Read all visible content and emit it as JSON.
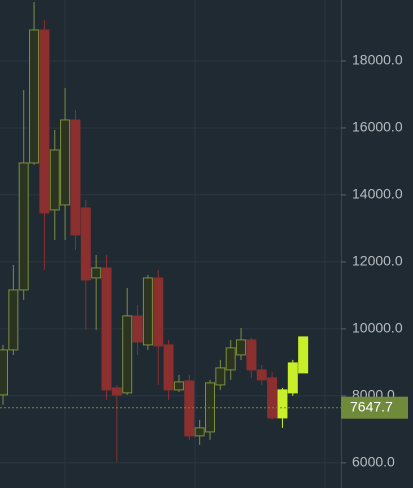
{
  "chart_data": {
    "type": "candlestick",
    "ylim": [
      5250,
      19820
    ],
    "yticks": [
      {
        "value": 6000,
        "label": "6000.0"
      },
      {
        "value": 8000,
        "label": "8000.0"
      },
      {
        "value": 10000,
        "label": "10000.0"
      },
      {
        "value": 12000,
        "label": "12000.0"
      },
      {
        "value": 14000,
        "label": "14000.0"
      },
      {
        "value": 16000,
        "label": "16000.0"
      },
      {
        "value": 18000,
        "label": "18000.0"
      }
    ],
    "grid": true,
    "up_color": "#7d8f3c",
    "down_color": "#8b2f2f",
    "candles": {
      "open": [
        8030,
        9373,
        11164,
        14955,
        18925,
        13552,
        13701,
        16239,
        13612,
        11522,
        11821,
        8239,
        8090,
        10388,
        9522,
        11522,
        9522,
        8179,
        8448,
        6806,
        6925,
        8328,
        8776,
        9224,
        9672,
        8776,
        8537
      ],
      "high": [
        9522,
        11910,
        17134,
        19761,
        19224,
        15940,
        17194,
        16537,
        13851,
        12209,
        12209,
        8328,
        11224,
        10716,
        11612,
        11761,
        9672,
        8627,
        8627,
        7284,
        8478,
        9075,
        9672,
        10030,
        9731,
        8925,
        8716
      ],
      "low": [
        7731,
        9224,
        10866,
        14896,
        11761,
        12657,
        12657,
        12358,
        9970,
        9970,
        7881,
        6030,
        8030,
        9224,
        9373,
        8328,
        7881,
        8119,
        6687,
        6537,
        6687,
        8179,
        8478,
        9075,
        8537,
        8328,
        7284
      ],
      "close": [
        9373,
        11164,
        14955,
        18925,
        13463,
        15343,
        16239,
        12806,
        11463,
        11821,
        8179,
        8030,
        10388,
        9612,
        11522,
        9493,
        8179,
        8418,
        6806,
        7045,
        8388,
        8836,
        9433,
        9672,
        8776,
        8478,
        7343
      ]
    },
    "projection": {
      "color": "#c8f02a",
      "open": [
        7343,
        8090,
        8687
      ],
      "high": [
        8239,
        9075,
        9761
      ],
      "low": [
        7045,
        8000,
        8687
      ],
      "close": [
        8179,
        8985,
        9761
      ]
    },
    "last_price": 7647.7,
    "last_price_color": "#6f8a3a"
  }
}
